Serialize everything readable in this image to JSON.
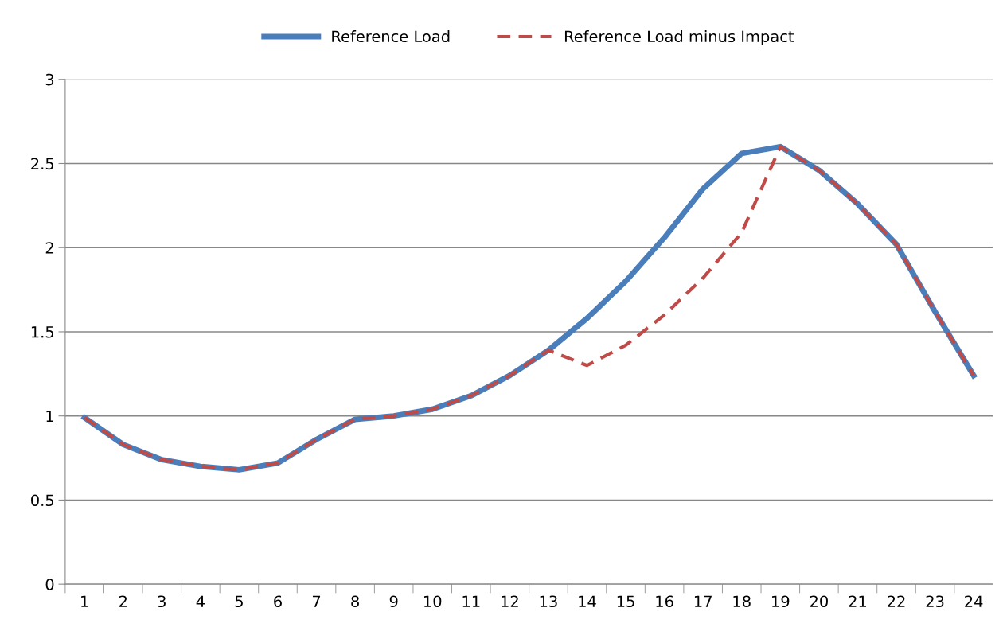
{
  "chart_data": {
    "type": "line",
    "categories": [
      "1",
      "2",
      "3",
      "4",
      "5",
      "6",
      "7",
      "8",
      "9",
      "10",
      "11",
      "12",
      "13",
      "14",
      "15",
      "16",
      "17",
      "18",
      "19",
      "20",
      "21",
      "22",
      "23",
      "24"
    ],
    "series": [
      {
        "name": "Reference Load",
        "color": "#4a7ebb",
        "line_style": "solid",
        "values": [
          0.99,
          0.83,
          0.74,
          0.7,
          0.68,
          0.72,
          0.86,
          0.98,
          1.0,
          1.04,
          1.12,
          1.24,
          1.39,
          1.58,
          1.8,
          2.06,
          2.35,
          2.56,
          2.6,
          2.46,
          2.26,
          2.02,
          1.62,
          1.24
        ]
      },
      {
        "name": "Reference Load minus Impact",
        "color": "#be4b48",
        "line_style": "dashed",
        "values": [
          0.99,
          0.83,
          0.74,
          0.7,
          0.68,
          0.72,
          0.86,
          0.98,
          1.0,
          1.04,
          1.12,
          1.24,
          1.39,
          1.3,
          1.42,
          1.6,
          1.82,
          2.09,
          2.6,
          2.46,
          2.26,
          2.02,
          1.62,
          1.24
        ]
      }
    ],
    "ylim": [
      0,
      3
    ],
    "yticks": [
      0,
      0.5,
      1,
      1.5,
      2,
      2.5,
      3
    ],
    "grid": "y",
    "legend": "top",
    "marker": "none"
  }
}
